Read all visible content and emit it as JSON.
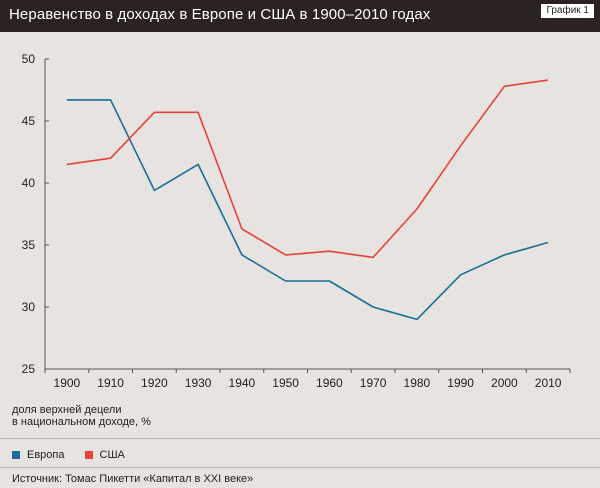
{
  "header": {
    "title": "Неравенство в доходах в Европе и США в 1900–2010 годах",
    "tag": "График 1"
  },
  "chart_data": {
    "type": "line",
    "x": [
      1900,
      1910,
      1920,
      1930,
      1940,
      1950,
      1960,
      1970,
      1980,
      1990,
      2000,
      2010
    ],
    "xticks": [
      "1900",
      "1910",
      "1920",
      "1930",
      "1940",
      "1950",
      "1960",
      "1970",
      "1980",
      "1990",
      "2000",
      "2010"
    ],
    "yticks": [
      "25",
      "30",
      "35",
      "40",
      "45",
      "50"
    ],
    "ylim": [
      25,
      50
    ],
    "ylabel": "доля верхней децели\nв национальном доходе, %",
    "grid": false,
    "legend_placement": "bottom-left",
    "series": [
      {
        "name": "Европа",
        "color": "#1a6f96",
        "values": [
          46.7,
          46.7,
          39.4,
          41.5,
          34.2,
          32.1,
          32.1,
          30.0,
          29.0,
          32.6,
          34.2,
          35.2
        ]
      },
      {
        "name": "США",
        "color": "#e8413a",
        "values": [
          41.5,
          42.0,
          45.7,
          45.7,
          36.3,
          34.2,
          34.5,
          34.0,
          37.9,
          43.0,
          47.8,
          48.3
        ]
      }
    ]
  },
  "source": "Источник: Томас Пикетти «Капитал в XXI веке»"
}
